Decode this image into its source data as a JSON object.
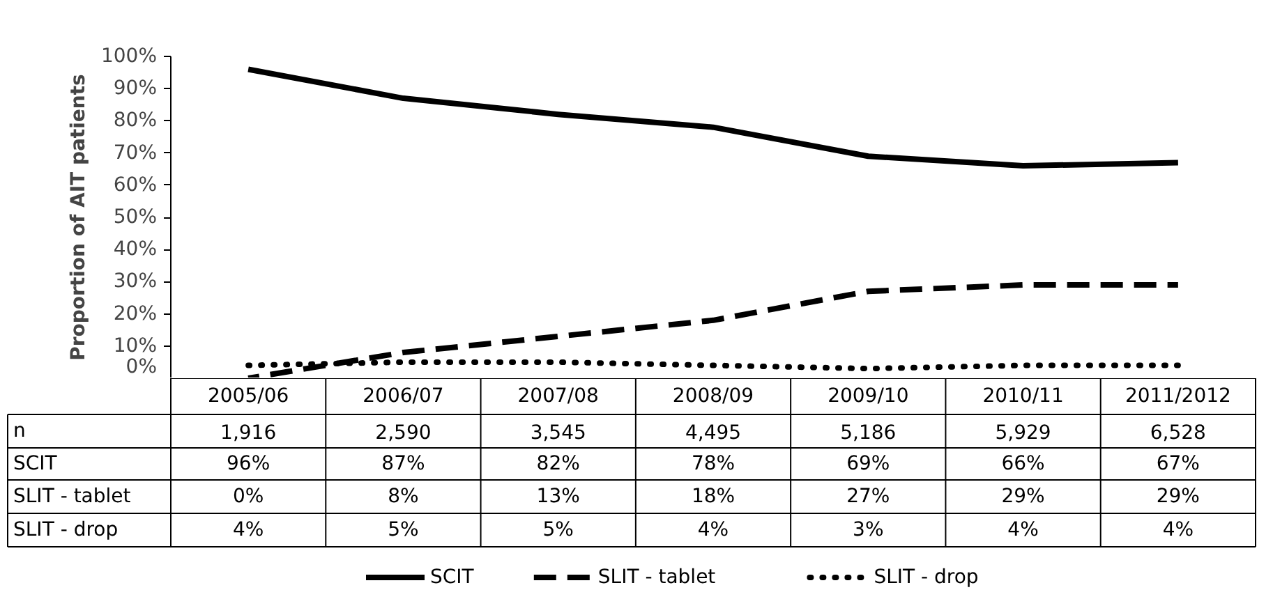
{
  "chart_data": {
    "type": "line",
    "ylabel": "Proportion of AIT patients",
    "categories": [
      "2005/06",
      "2006/07",
      "2007/08",
      "2008/09",
      "2009/10",
      "2010/11",
      "2011/2012"
    ],
    "ylim": [
      0,
      100
    ],
    "yticks": [
      {
        "value": 0,
        "label": "0%"
      },
      {
        "value": 10,
        "label": "10%"
      },
      {
        "value": 20,
        "label": "20%"
      },
      {
        "value": 30,
        "label": "30%"
      },
      {
        "value": 40,
        "label": "40%"
      },
      {
        "value": 50,
        "label": "50%"
      },
      {
        "value": 60,
        "label": "60%"
      },
      {
        "value": 70,
        "label": "70%"
      },
      {
        "value": 80,
        "label": "80%"
      },
      {
        "value": 90,
        "label": "90%"
      },
      {
        "value": 100,
        "label": "100%"
      }
    ],
    "annotations": [
      "n",
      "1,916",
      "2,590",
      "3,545",
      "4,495",
      "5,186",
      "5,929",
      "6,528"
    ],
    "series": [
      {
        "name": "SCIT",
        "color": "#000000",
        "line_style": "solid",
        "values": [
          96,
          87,
          82,
          78,
          69,
          66,
          67
        ],
        "value_labels": [
          "96%",
          "87%",
          "82%",
          "78%",
          "69%",
          "66%",
          "67%"
        ]
      },
      {
        "name": "SLIT - tablet",
        "color": "#000000",
        "line_style": "dashed",
        "values": [
          0,
          8,
          13,
          18,
          27,
          29,
          29
        ],
        "value_labels": [
          "0%",
          "8%",
          "13%",
          "18%",
          "27%",
          "29%",
          "29%"
        ]
      },
      {
        "name": "SLIT - drop",
        "color": "#000000",
        "line_style": "dotted",
        "values": [
          4,
          5,
          5,
          4,
          3,
          4,
          4
        ],
        "value_labels": [
          "4%",
          "5%",
          "5%",
          "4%",
          "3%",
          "4%",
          "4%"
        ]
      }
    ],
    "grid": false,
    "legend": "bottom"
  }
}
